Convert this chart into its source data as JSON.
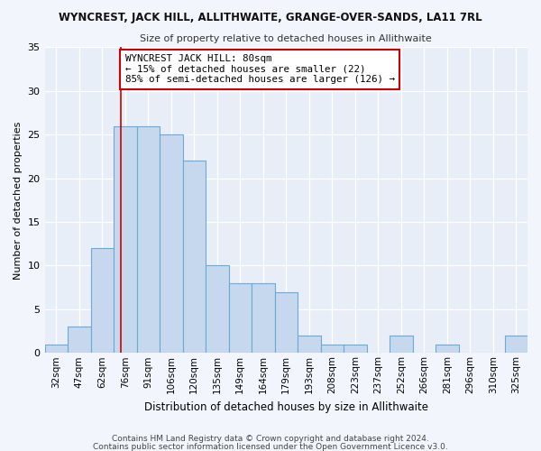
{
  "title": "WYNCREST, JACK HILL, ALLITHWAITE, GRANGE-OVER-SANDS, LA11 7RL",
  "subtitle": "Size of property relative to detached houses in Allithwaite",
  "xlabel": "Distribution of detached houses by size in Allithwaite",
  "ylabel": "Number of detached properties",
  "bin_labels": [
    "32sqm",
    "47sqm",
    "62sqm",
    "76sqm",
    "91sqm",
    "106sqm",
    "120sqm",
    "135sqm",
    "149sqm",
    "164sqm",
    "179sqm",
    "193sqm",
    "208sqm",
    "223sqm",
    "237sqm",
    "252sqm",
    "266sqm",
    "281sqm",
    "296sqm",
    "310sqm",
    "325sqm"
  ],
  "bar_heights": [
    1,
    3,
    12,
    26,
    26,
    25,
    22,
    10,
    8,
    8,
    7,
    2,
    1,
    1,
    0,
    2,
    0,
    1,
    0,
    0,
    2
  ],
  "bar_color": "#c5d8ee",
  "bar_edge_color": "#6aaad4",
  "red_line_x": 3.33,
  "annotation_text": "WYNCREST JACK HILL: 80sqm\n← 15% of detached houses are smaller (22)\n85% of semi-detached houses are larger (126) →",
  "annotation_box_color": "#ffffff",
  "annotation_box_edge": "#cc0000",
  "red_line_color": "#cc0000",
  "ylim": [
    0,
    35
  ],
  "yticks": [
    0,
    5,
    10,
    15,
    20,
    25,
    30,
    35
  ],
  "footer1": "Contains HM Land Registry data © Crown copyright and database right 2024.",
  "footer2": "Contains public sector information licensed under the Open Government Licence v3.0.",
  "background_color": "#f2f5fb",
  "axes_background": "#e8eef8"
}
